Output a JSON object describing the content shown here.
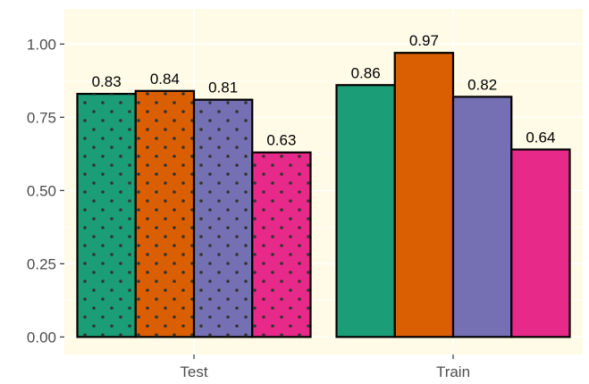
{
  "chart_data": {
    "type": "bar",
    "title": "",
    "xlabel": "",
    "ylabel": "",
    "ylim": [
      -0.06,
      1.12
    ],
    "y_ticks": [
      "0.00",
      "0.25",
      "0.50",
      "0.75",
      "1.00"
    ],
    "y_tick_values": [
      0,
      0.25,
      0.5,
      0.75,
      1.0
    ],
    "categories": [
      "Test",
      "Train"
    ],
    "series": [
      {
        "values": [
          0.83,
          0.86
        ],
        "labels": [
          "0.83",
          "0.86"
        ],
        "color": "#1b9e77"
      },
      {
        "values": [
          0.84,
          0.97
        ],
        "labels": [
          "0.84",
          "0.97"
        ],
        "color": "#d95f02"
      },
      {
        "values": [
          0.81,
          0.82
        ],
        "labels": [
          "0.81",
          "0.82"
        ],
        "color": "#7570b3"
      },
      {
        "values": [
          0.63,
          0.64
        ],
        "labels": [
          "0.63",
          "0.64"
        ],
        "color": "#e7298a"
      }
    ],
    "pattern": {
      "Test": "dots",
      "Train": "none"
    },
    "panel_background": "#fffbe6",
    "grid": true,
    "legend": "none"
  }
}
